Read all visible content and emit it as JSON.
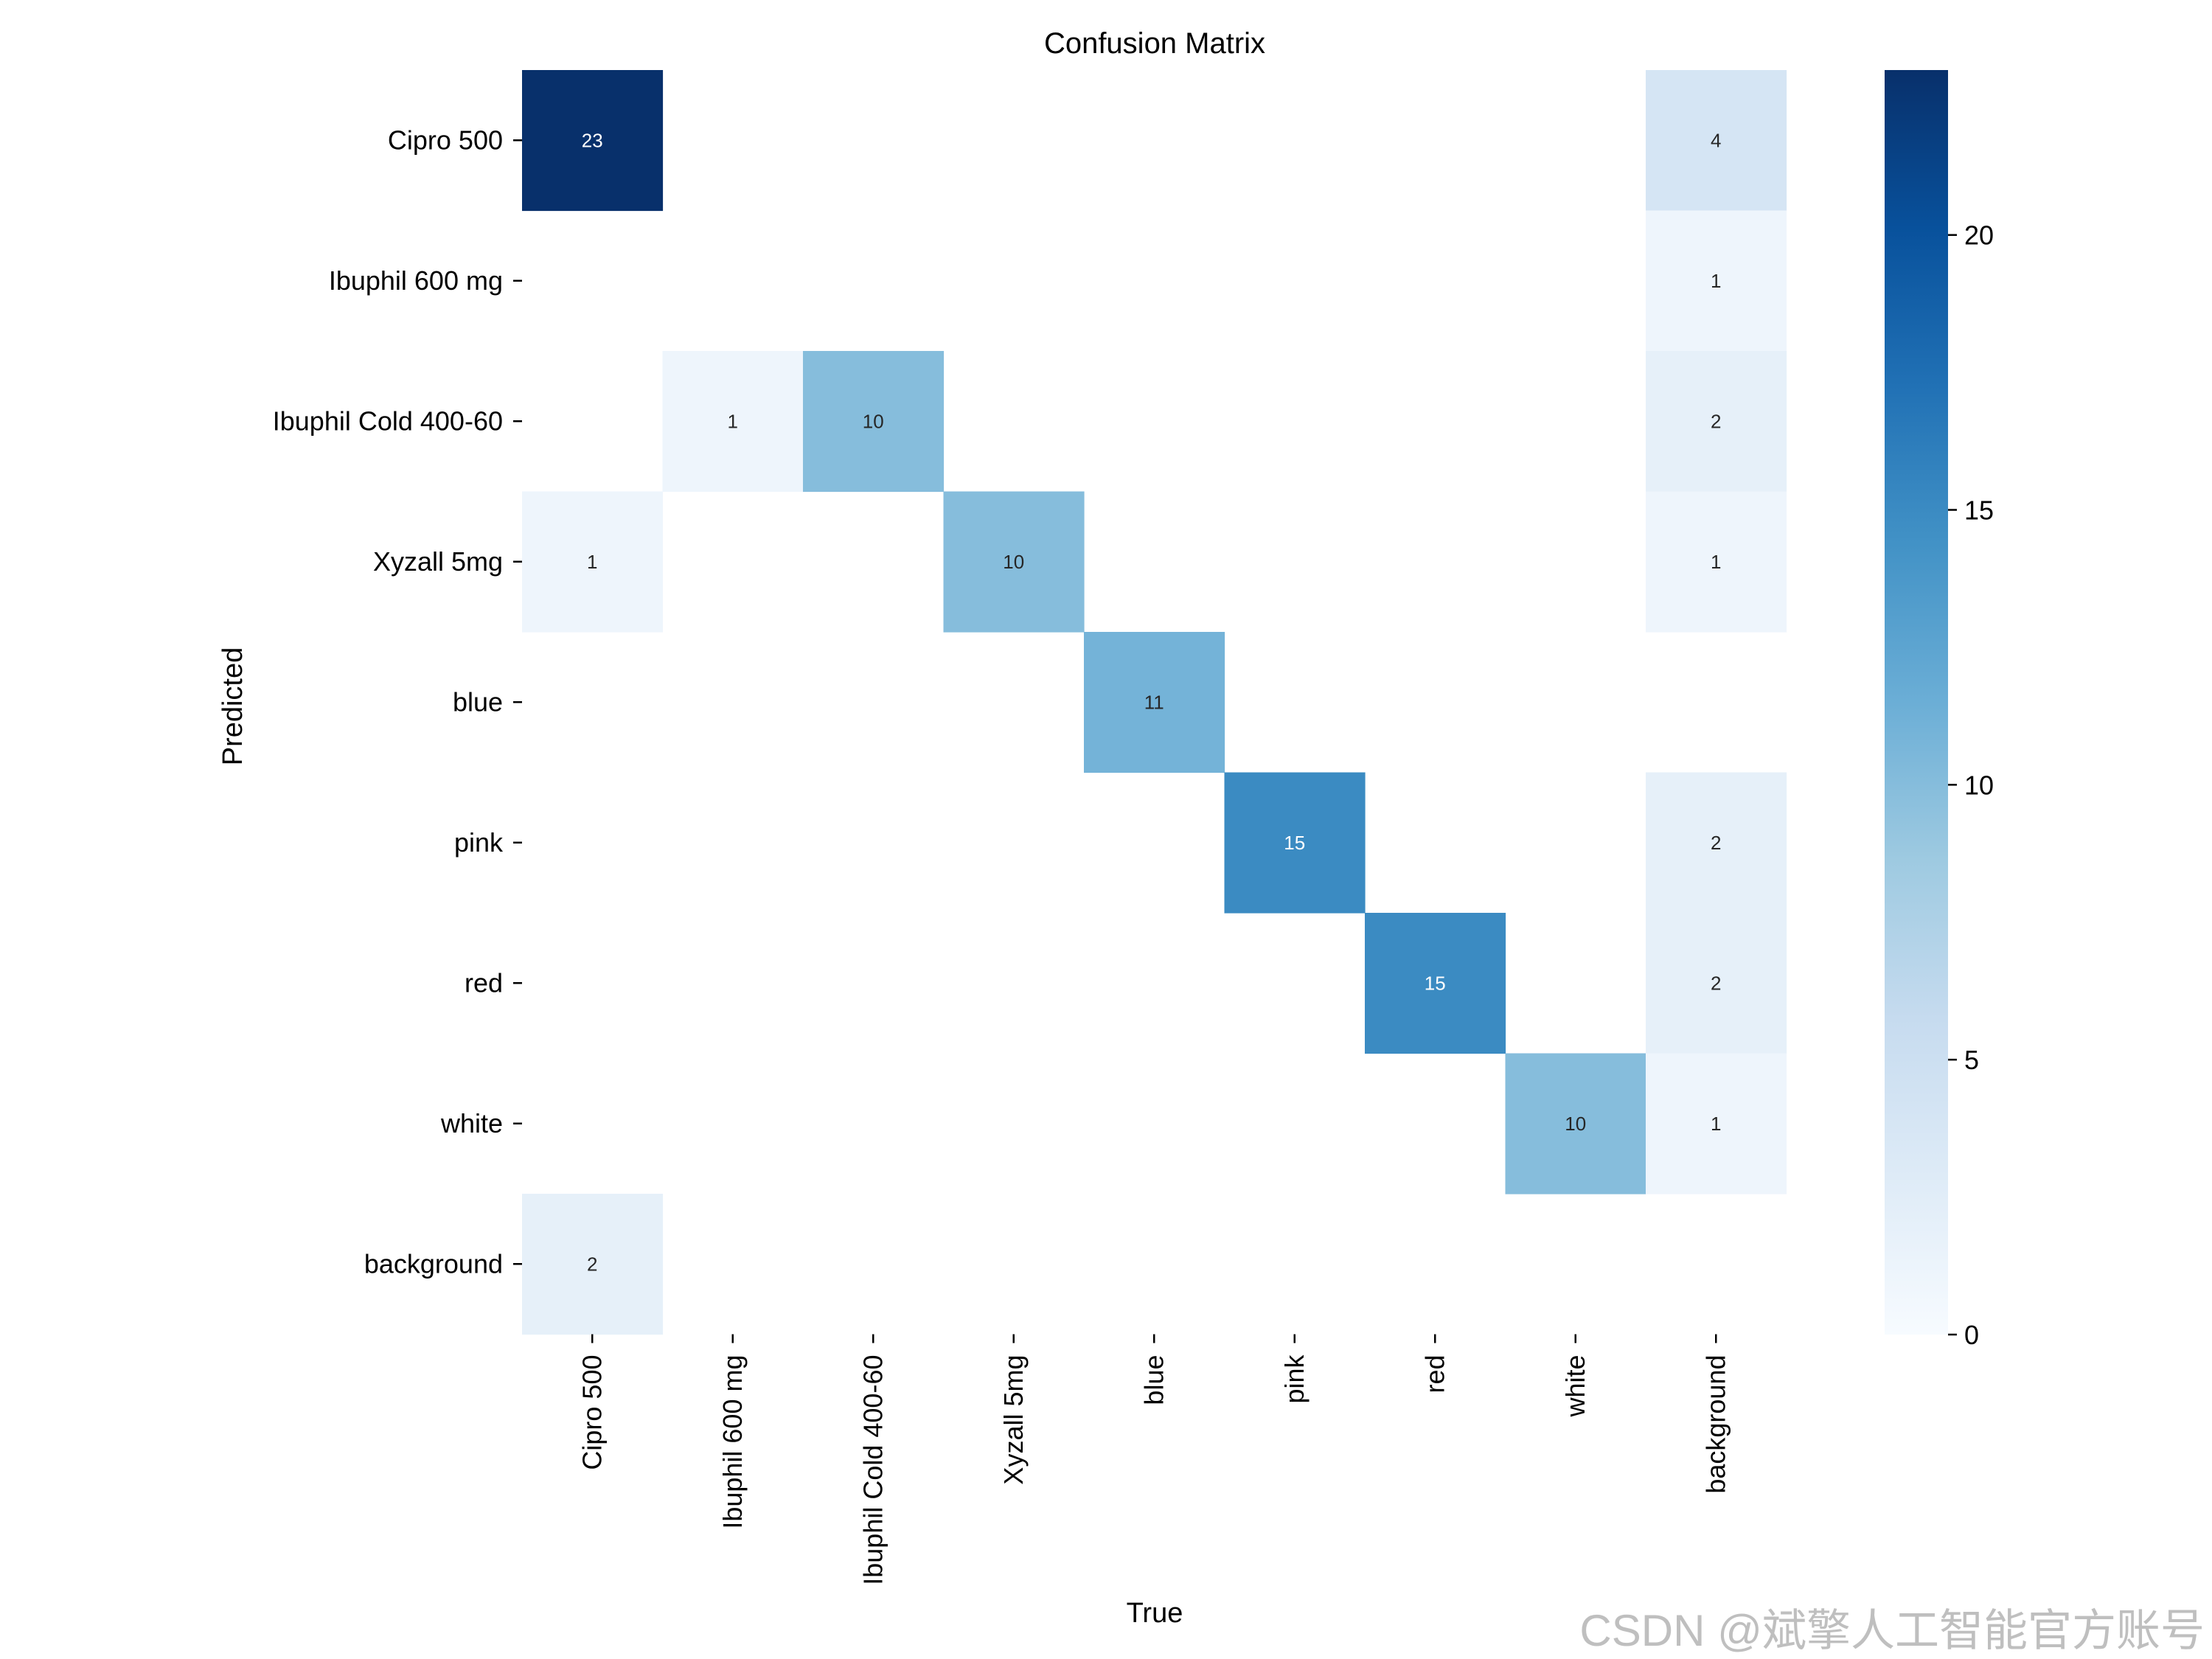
{
  "chart_data": {
    "type": "heatmap",
    "title": "Confusion Matrix",
    "xlabel": "True",
    "ylabel": "Predicted",
    "x_categories": [
      "Cipro 500",
      "Ibuphil 600 mg",
      "Ibuphil Cold 400-60",
      "Xyzall 5mg",
      "blue",
      "pink",
      "red",
      "white",
      "background"
    ],
    "y_categories": [
      "Cipro 500",
      "Ibuphil 600 mg",
      "Ibuphil Cold 400-60",
      "Xyzall 5mg",
      "blue",
      "pink",
      "red",
      "white",
      "background"
    ],
    "matrix": [
      [
        23,
        0,
        0,
        0,
        0,
        0,
        0,
        0,
        4
      ],
      [
        0,
        0,
        0,
        0,
        0,
        0,
        0,
        0,
        1
      ],
      [
        0,
        1,
        10,
        0,
        0,
        0,
        0,
        0,
        2
      ],
      [
        1,
        0,
        0,
        10,
        0,
        0,
        0,
        0,
        1
      ],
      [
        0,
        0,
        0,
        0,
        11,
        0,
        0,
        0,
        0
      ],
      [
        0,
        0,
        0,
        0,
        0,
        15,
        0,
        0,
        2
      ],
      [
        0,
        0,
        0,
        0,
        0,
        0,
        15,
        0,
        2
      ],
      [
        0,
        0,
        0,
        0,
        0,
        0,
        0,
        10,
        1
      ],
      [
        2,
        0,
        0,
        0,
        0,
        0,
        0,
        0,
        0
      ]
    ],
    "hide_zero_cells": true,
    "colormap": "Blues",
    "colorbar": {
      "min": 0,
      "max": 23,
      "ticks": [
        0,
        5,
        10,
        15,
        20
      ]
    },
    "grid": false
  },
  "watermark": "CSDN @斌擎人工智能官方账号",
  "colors": {
    "low": "#f7fbff",
    "high": "#08306b",
    "text_light": "#ffffff",
    "text_dark": "#262626"
  }
}
